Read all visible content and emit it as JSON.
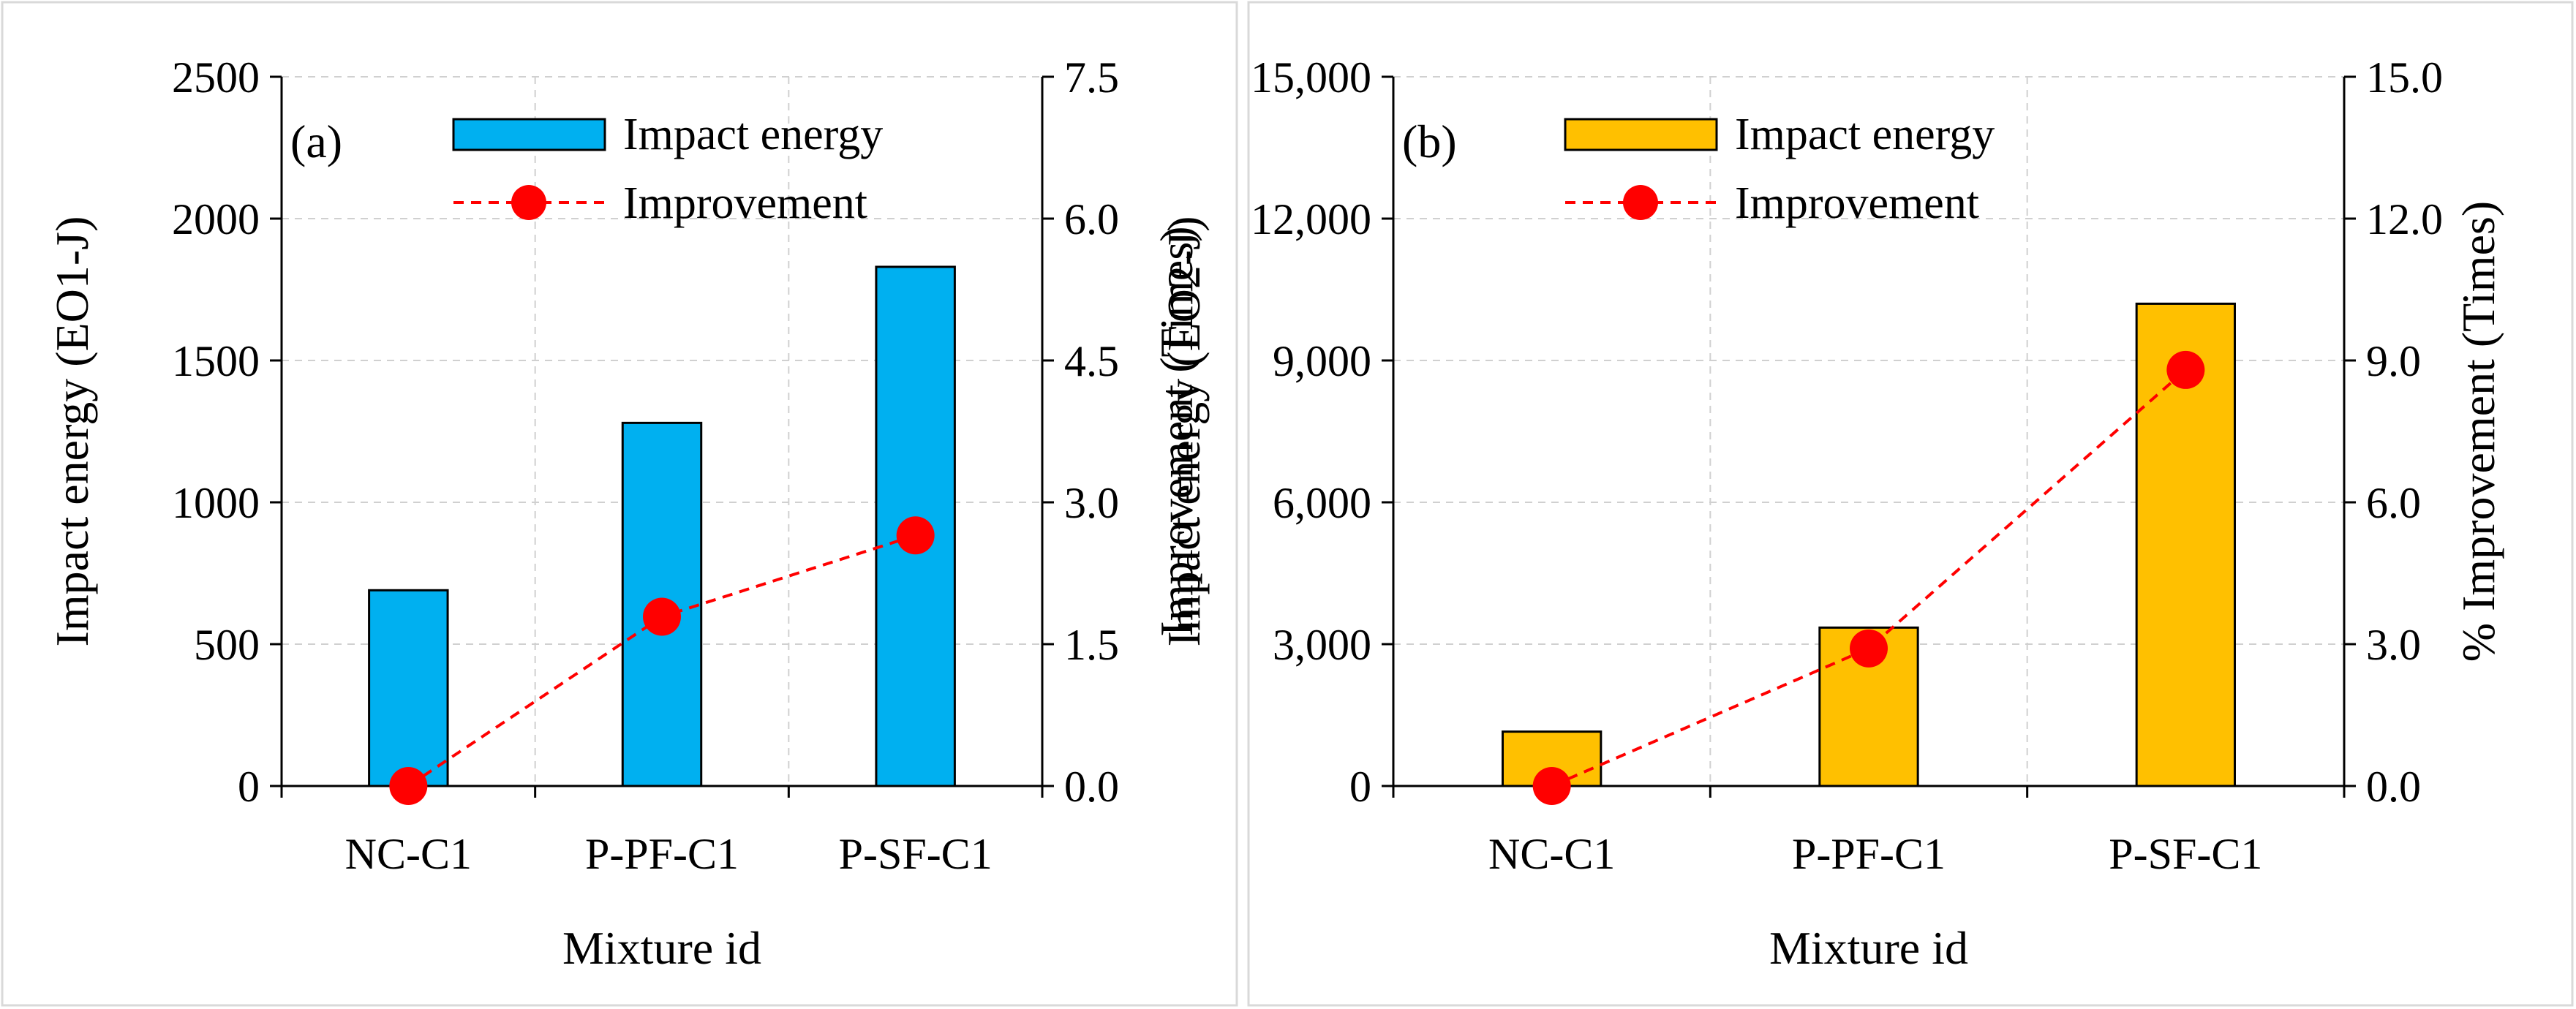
{
  "chart_data": [
    {
      "type": "bar",
      "panel_label": "(a)",
      "categories": [
        "NC-C1",
        "P-PF-C1",
        "P-SF-C1"
      ],
      "series": [
        {
          "name": "Impact energy",
          "axis": "left",
          "type": "bar",
          "color": "#00B0F0",
          "values": [
            690,
            1280,
            1830
          ]
        },
        {
          "name": "Improvement",
          "axis": "right",
          "type": "line",
          "color": "#FF0000",
          "values": [
            0.0,
            1.79,
            2.65
          ]
        }
      ],
      "xlabel": "Mixture id",
      "ylabel": "Impact energy (EO1-J)",
      "y2label": "Improvement (Times)",
      "ylim": [
        0,
        2500
      ],
      "yticks": [
        "0",
        "500",
        "1000",
        "1500",
        "2000",
        "2500"
      ],
      "y2lim": [
        0,
        7.5
      ],
      "y2ticks": [
        "0.0",
        "1.5",
        "3.0",
        "4.5",
        "6.0",
        "7.5"
      ],
      "grid": true,
      "legend": "top"
    },
    {
      "type": "bar",
      "panel_label": "(b)",
      "categories": [
        "NC-C1",
        "P-PF-C1",
        "P-SF-C1"
      ],
      "series": [
        {
          "name": "Impact energy",
          "axis": "left",
          "type": "bar",
          "color": "#FFC000",
          "values": [
            1150,
            3350,
            10200
          ]
        },
        {
          "name": "Improvement",
          "axis": "right",
          "type": "line",
          "color": "#FF0000",
          "values": [
            0.0,
            2.91,
            8.8
          ]
        }
      ],
      "xlabel": "Mixture id",
      "ylabel": "Impact energy (EO2-J)",
      "y2label": "% Improvement (Times)",
      "ylim": [
        0,
        15000
      ],
      "yticks": [
        "0",
        "3,000",
        "6,000",
        "9,000",
        "12,000",
        "15,000"
      ],
      "y2lim": [
        0,
        15.0
      ],
      "y2ticks": [
        "0.0",
        "3.0",
        "6.0",
        "9.0",
        "12.0",
        "15.0"
      ],
      "grid": true,
      "legend": "top"
    }
  ]
}
